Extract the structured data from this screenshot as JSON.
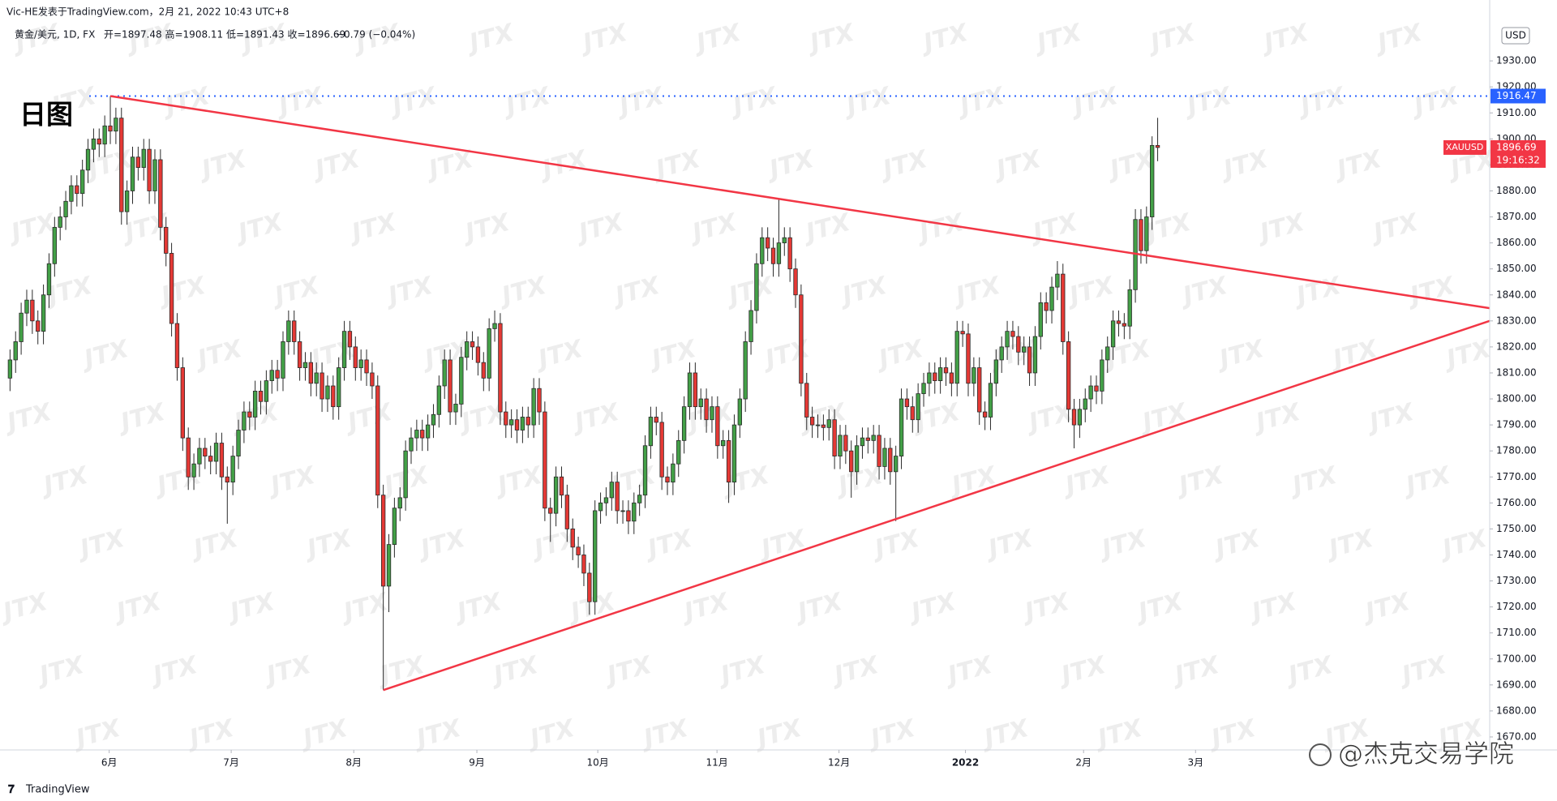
{
  "header": {
    "published": "Vic-HE发表于TradingView.com，2月 21, 2022 10:43 UTC+8",
    "symbol": "黄金/美元, 1D, FX",
    "ohlc": "开=1897.48 高=1908.11 低=1891.43 收=1896.69",
    "change": "−0.79 (−0.04%)"
  },
  "chart_data": {
    "type": "candlestick",
    "annotation": "日图",
    "currency": "USD",
    "symbol_tag": "XAUUSD",
    "last_price": 1896.69,
    "countdown": "19:16:32",
    "open": [
      1808,
      1815,
      1822,
      1833,
      1838,
      1830,
      1826,
      1840,
      1852,
      1866,
      1870,
      1876,
      1882,
      1879,
      1888,
      1896,
      1900,
      1898,
      1905,
      1903,
      1908,
      1872,
      1880,
      1893,
      1889,
      1896,
      1880,
      1892,
      1866,
      1856,
      1829,
      1812,
      1785,
      1770,
      1775,
      1781,
      1778,
      1776,
      1783,
      1770,
      1768,
      1778,
      1788,
      1795,
      1793,
      1803,
      1799,
      1807,
      1811,
      1808,
      1822,
      1830,
      1822,
      1812,
      1814,
      1806,
      1810,
      1800,
      1805,
      1797,
      1812,
      1826,
      1820,
      1812,
      1815,
      1810,
      1805,
      1763,
      1728,
      1744,
      1758,
      1762,
      1780,
      1785,
      1788,
      1785,
      1790,
      1794,
      1805,
      1815,
      1795,
      1798,
      1816,
      1822,
      1820,
      1814,
      1808,
      1827,
      1829,
      1795,
      1790,
      1792,
      1788,
      1793,
      1790,
      1804,
      1795,
      1758,
      1756,
      1770,
      1763,
      1750,
      1743,
      1740,
      1733,
      1722,
      1757,
      1760,
      1762,
      1768,
      1757,
      1757,
      1753,
      1760,
      1763,
      1782,
      1793,
      1791,
      1770,
      1768,
      1775,
      1784,
      1797,
      1810,
      1797,
      1800,
      1792,
      1797,
      1782,
      1784,
      1768,
      1790,
      1800,
      1822,
      1834,
      1852,
      1862,
      1858,
      1852,
      1860,
      1862,
      1850,
      1840,
      1806,
      1793,
      1790,
      1790,
      1789,
      1792,
      1778,
      1786,
      1780,
      1772,
      1782,
      1785,
      1784,
      1786,
      1774,
      1781,
      1772,
      1778,
      1800,
      1797,
      1792,
      1802,
      1806,
      1810,
      1807,
      1812,
      1810,
      1806,
      1826,
      1825,
      1806,
      1812,
      1795,
      1793,
      1806,
      1815,
      1820,
      1826,
      1824,
      1818,
      1820,
      1810,
      1824,
      1837,
      1834,
      1843,
      1848,
      1822,
      1796,
      1790,
      1796,
      1800,
      1805,
      1803,
      1815,
      1820,
      1830,
      1829,
      1828,
      1842,
      1869,
      1857,
      1870,
      1897.48
    ],
    "high": [
      1819,
      1826,
      1837,
      1842,
      1842,
      1834,
      1844,
      1856,
      1870,
      1874,
      1880,
      1886,
      1886,
      1892,
      1900,
      1904,
      1904,
      1909,
      1916.47,
      1912,
      1912,
      1884,
      1897,
      1897,
      1900,
      1900,
      1896,
      1896,
      1870,
      1860,
      1833,
      1816,
      1789,
      1779,
      1785,
      1785,
      1782,
      1787,
      1787,
      1774,
      1782,
      1792,
      1799,
      1799,
      1807,
      1807,
      1811,
      1815,
      1815,
      1826,
      1834,
      1834,
      1826,
      1818,
      1818,
      1814,
      1814,
      1809,
      1809,
      1816,
      1830,
      1830,
      1824,
      1819,
      1819,
      1814,
      1809,
      1767,
      1748,
      1762,
      1766,
      1784,
      1789,
      1792,
      1792,
      1794,
      1798,
      1809,
      1819,
      1819,
      1802,
      1820,
      1826,
      1826,
      1824,
      1818,
      1831,
      1834,
      1833,
      1799,
      1796,
      1796,
      1797,
      1797,
      1808,
      1808,
      1799,
      1762,
      1774,
      1774,
      1767,
      1754,
      1747,
      1744,
      1737,
      1761,
      1764,
      1766,
      1772,
      1772,
      1761,
      1761,
      1764,
      1767,
      1786,
      1797,
      1797,
      1795,
      1774,
      1779,
      1788,
      1801,
      1814,
      1814,
      1804,
      1804,
      1801,
      1801,
      1788,
      1788,
      1794,
      1804,
      1826,
      1838,
      1856,
      1866,
      1866,
      1862,
      1877,
      1866,
      1866,
      1854,
      1844,
      1810,
      1797,
      1794,
      1794,
      1796,
      1796,
      1790,
      1790,
      1784,
      1786,
      1789,
      1789,
      1790,
      1790,
      1785,
      1785,
      1782,
      1804,
      1804,
      1801,
      1806,
      1810,
      1814,
      1814,
      1816,
      1816,
      1814,
      1830,
      1830,
      1829,
      1816,
      1816,
      1799,
      1810,
      1819,
      1824,
      1830,
      1830,
      1828,
      1824,
      1824,
      1828,
      1841,
      1841,
      1847,
      1853,
      1852,
      1826,
      1800,
      1800,
      1804,
      1809,
      1809,
      1819,
      1824,
      1834,
      1834,
      1833,
      1846,
      1873,
      1873,
      1874,
      1901,
      1908.11
    ],
    "low": [
      1803,
      1810,
      1817,
      1828,
      1825,
      1821,
      1821,
      1835,
      1847,
      1861,
      1865,
      1871,
      1874,
      1874,
      1883,
      1891,
      1893,
      1893,
      1898,
      1898,
      1867,
      1867,
      1875,
      1884,
      1884,
      1875,
      1875,
      1861,
      1851,
      1824,
      1807,
      1780,
      1765,
      1765,
      1770,
      1773,
      1771,
      1771,
      1765,
      1752,
      1763,
      1773,
      1783,
      1788,
      1788,
      1794,
      1794,
      1802,
      1803,
      1803,
      1817,
      1817,
      1807,
      1807,
      1801,
      1801,
      1795,
      1795,
      1792,
      1792,
      1807,
      1815,
      1807,
      1807,
      1805,
      1800,
      1758,
      1688,
      1718,
      1739,
      1753,
      1757,
      1775,
      1780,
      1780,
      1780,
      1785,
      1789,
      1800,
      1790,
      1790,
      1793,
      1811,
      1815,
      1809,
      1803,
      1803,
      1822,
      1790,
      1785,
      1785,
      1783,
      1783,
      1785,
      1785,
      1790,
      1753,
      1745,
      1751,
      1758,
      1745,
      1738,
      1735,
      1728,
      1717,
      1717,
      1752,
      1755,
      1757,
      1752,
      1752,
      1748,
      1748,
      1755,
      1758,
      1777,
      1786,
      1765,
      1763,
      1763,
      1770,
      1779,
      1792,
      1792,
      1792,
      1787,
      1787,
      1777,
      1777,
      1760,
      1763,
      1785,
      1795,
      1817,
      1829,
      1847,
      1853,
      1847,
      1847,
      1855,
      1845,
      1835,
      1801,
      1788,
      1785,
      1785,
      1784,
      1784,
      1773,
      1773,
      1775,
      1762,
      1767,
      1777,
      1779,
      1779,
      1769,
      1769,
      1767,
      1753,
      1773,
      1792,
      1787,
      1787,
      1797,
      1801,
      1802,
      1802,
      1805,
      1801,
      1801,
      1820,
      1801,
      1801,
      1790,
      1788,
      1788,
      1801,
      1810,
      1815,
      1819,
      1813,
      1813,
      1805,
      1805,
      1819,
      1829,
      1829,
      1838,
      1817,
      1791,
      1781,
      1785,
      1791,
      1795,
      1798,
      1798,
      1810,
      1815,
      1824,
      1823,
      1823,
      1837,
      1852,
      1852,
      1865,
      1891.43
    ],
    "close": [
      1815,
      1822,
      1833,
      1838,
      1830,
      1826,
      1840,
      1852,
      1866,
      1870,
      1876,
      1882,
      1879,
      1888,
      1896,
      1900,
      1898,
      1905,
      1903,
      1908,
      1872,
      1880,
      1893,
      1889,
      1896,
      1880,
      1892,
      1866,
      1856,
      1829,
      1812,
      1785,
      1770,
      1775,
      1781,
      1778,
      1776,
      1783,
      1770,
      1768,
      1778,
      1788,
      1795,
      1793,
      1803,
      1799,
      1807,
      1811,
      1808,
      1822,
      1830,
      1822,
      1812,
      1814,
      1806,
      1810,
      1800,
      1805,
      1797,
      1812,
      1826,
      1820,
      1812,
      1815,
      1810,
      1805,
      1763,
      1728,
      1744,
      1758,
      1762,
      1780,
      1785,
      1788,
      1785,
      1790,
      1794,
      1805,
      1815,
      1795,
      1798,
      1816,
      1822,
      1820,
      1814,
      1808,
      1827,
      1829,
      1795,
      1790,
      1792,
      1788,
      1793,
      1790,
      1804,
      1795,
      1758,
      1756,
      1770,
      1763,
      1750,
      1743,
      1740,
      1733,
      1722,
      1757,
      1760,
      1762,
      1768,
      1757,
      1757,
      1753,
      1760,
      1763,
      1782,
      1793,
      1791,
      1770,
      1768,
      1775,
      1784,
      1797,
      1810,
      1797,
      1800,
      1792,
      1797,
      1782,
      1784,
      1768,
      1790,
      1800,
      1822,
      1834,
      1852,
      1862,
      1858,
      1852,
      1860,
      1862,
      1850,
      1840,
      1806,
      1793,
      1790,
      1790,
      1789,
      1792,
      1778,
      1786,
      1780,
      1772,
      1782,
      1785,
      1784,
      1786,
      1774,
      1781,
      1772,
      1778,
      1800,
      1797,
      1792,
      1802,
      1806,
      1810,
      1807,
      1812,
      1810,
      1806,
      1826,
      1825,
      1806,
      1812,
      1795,
      1793,
      1806,
      1815,
      1820,
      1826,
      1824,
      1818,
      1820,
      1810,
      1824,
      1837,
      1834,
      1843,
      1848,
      1822,
      1796,
      1790,
      1796,
      1800,
      1805,
      1803,
      1815,
      1820,
      1830,
      1829,
      1828,
      1842,
      1869,
      1857,
      1870,
      1897.48,
      1896.69
    ],
    "up_color": "#43a047",
    "down_color": "#e53935",
    "wick_color": "#2a2a2a",
    "xlim": [
      -1.8,
      265.6
    ],
    "xticks": [
      {
        "value": 17.8,
        "label": "6月"
      },
      {
        "value": 39.7,
        "label": "7月"
      },
      {
        "value": 61.7,
        "label": "8月"
      },
      {
        "value": 83.8,
        "label": "9月"
      },
      {
        "value": 105.5,
        "label": "10月"
      },
      {
        "value": 126.9,
        "label": "11月"
      },
      {
        "value": 148.8,
        "label": "12月"
      },
      {
        "value": 171.5,
        "label": "2022"
      },
      {
        "value": 192.7,
        "label": "2月"
      },
      {
        "value": 212.8,
        "label": "3月"
      }
    ],
    "ylim": [
      1665,
      1945
    ],
    "yticks": [
      {
        "value": 1670,
        "label": "1670.00"
      },
      {
        "value": 1680,
        "label": "1680.00"
      },
      {
        "value": 1690,
        "label": "1690.00"
      },
      {
        "value": 1700,
        "label": "1700.00"
      },
      {
        "value": 1710,
        "label": "1710.00"
      },
      {
        "value": 1720,
        "label": "1720.00"
      },
      {
        "value": 1730,
        "label": "1730.00"
      },
      {
        "value": 1740,
        "label": "1740.00"
      },
      {
        "value": 1750,
        "label": "1750.00"
      },
      {
        "value": 1760,
        "label": "1760.00"
      },
      {
        "value": 1770,
        "label": "1770.00"
      },
      {
        "value": 1780,
        "label": "1780.00"
      },
      {
        "value": 1790,
        "label": "1790.00"
      },
      {
        "value": 1800,
        "label": "1800.00"
      },
      {
        "value": 1810,
        "label": "1810.00"
      },
      {
        "value": 1820,
        "label": "1820.00"
      },
      {
        "value": 1830,
        "label": "1830.00"
      },
      {
        "value": 1840,
        "label": "1840.00"
      },
      {
        "value": 1850,
        "label": "1850.00"
      },
      {
        "value": 1860,
        "label": "1860.00"
      },
      {
        "value": 1870,
        "label": "1870.00"
      },
      {
        "value": 1880,
        "label": "1880.00"
      },
      {
        "value": 1890,
        "label": "1890.00"
      },
      {
        "value": 1900,
        "label": "1900.00"
      },
      {
        "value": 1910,
        "label": "1910.00"
      },
      {
        "value": 1920,
        "label": "1920.00"
      },
      {
        "value": 1930,
        "label": "1930.00"
      }
    ],
    "grid": false,
    "hlines": [
      {
        "value": 1916.47,
        "color": "#2962ff"
      }
    ],
    "trendlines": [
      {
        "x": [
          18,
          265.6
        ],
        "y": [
          1916.47,
          1834.9
        ]
      },
      {
        "x": [
          67,
          265.6
        ],
        "y": [
          1688,
          1830
        ]
      }
    ],
    "trendline_color": "#f23645",
    "last_price_color": "#f23645"
  },
  "footer": {
    "logo": "TradingView",
    "watermark": "JTX",
    "credit": "@杰克交易学院"
  }
}
